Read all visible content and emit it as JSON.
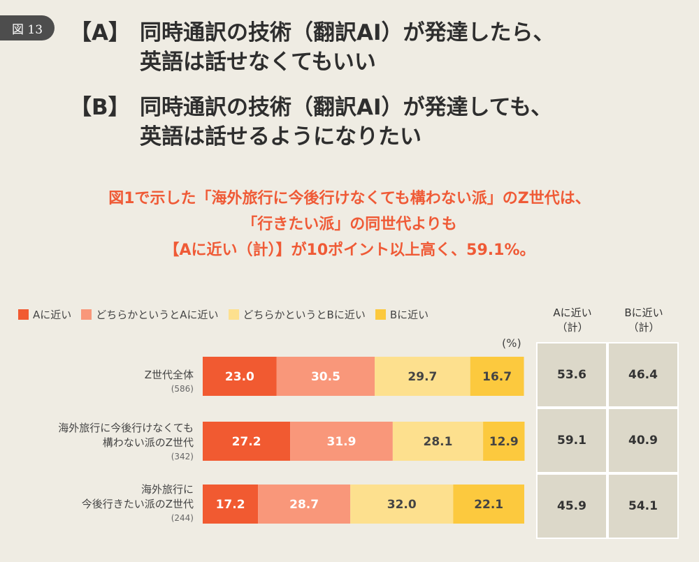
{
  "figure_label": "図 13",
  "question": {
    "a": {
      "tag": "【A】",
      "line1": "同時通訳の技術（翻訳AI）が発達したら、",
      "line2": "英語は話せなくてもいい"
    },
    "b": {
      "tag": "【B】",
      "line1": "同時通訳の技術（翻訳AI）が発達しても、",
      "line2": "英語は話せるようになりたい"
    }
  },
  "headline": [
    "図1で示した「海外旅行に今後行けなくても構わない派」のZ世代は、",
    "「行きたい派」の同世代よりも",
    "【Aに近い（計）】が10ポイント以上高く、59.1%。"
  ],
  "colors": {
    "a_close": "#f15a31",
    "a_somewhat": "#f9977a",
    "b_somewhat": "#fde08e",
    "b_close": "#fcc93e",
    "accent": "#ef5a36",
    "table_cell": "#dcd8c9"
  },
  "legend": [
    "Aに近い",
    "どちらかというとAに近い",
    "どちらかというとBに近い",
    "Bに近い"
  ],
  "table_headers": {
    "a_total_1": "Aに近い",
    "a_total_2": "（計）",
    "b_total_1": "Bに近い",
    "b_total_2": "（計）"
  },
  "unit": "(%)",
  "rows": [
    {
      "label_lines": [
        "Z世代全体"
      ],
      "n": "(586)",
      "a_total": "53.6",
      "b_total": "46.4"
    },
    {
      "label_lines": [
        "海外旅行に今後行けなくても",
        "構わない派のZ世代"
      ],
      "n": "(342)",
      "a_total": "59.1",
      "b_total": "40.9"
    },
    {
      "label_lines": [
        "海外旅行に",
        "今後行きたい派のZ世代"
      ],
      "n": "(244)",
      "a_total": "45.9",
      "b_total": "54.1"
    }
  ],
  "chart_data": {
    "type": "bar",
    "orientation": "horizontal",
    "stacked": true,
    "unit": "%",
    "categories": [
      "Z世代全体",
      "海外旅行に今後行けなくても構わない派のZ世代",
      "海外旅行に今後行きたい派のZ世代"
    ],
    "series": [
      {
        "name": "Aに近い",
        "color": "#f15a31",
        "values": [
          23.0,
          27.2,
          17.2
        ]
      },
      {
        "name": "どちらかというとAに近い",
        "color": "#f9977a",
        "values": [
          30.5,
          31.9,
          28.7
        ]
      },
      {
        "name": "どちらかというとBに近い",
        "color": "#fde08e",
        "values": [
          29.7,
          28.1,
          32.0
        ]
      },
      {
        "name": "Bに近い",
        "color": "#fcc93e",
        "values": [
          16.7,
          12.9,
          22.1
        ]
      }
    ],
    "xlim": [
      0,
      100
    ],
    "legend_position": "top",
    "grid": false
  }
}
